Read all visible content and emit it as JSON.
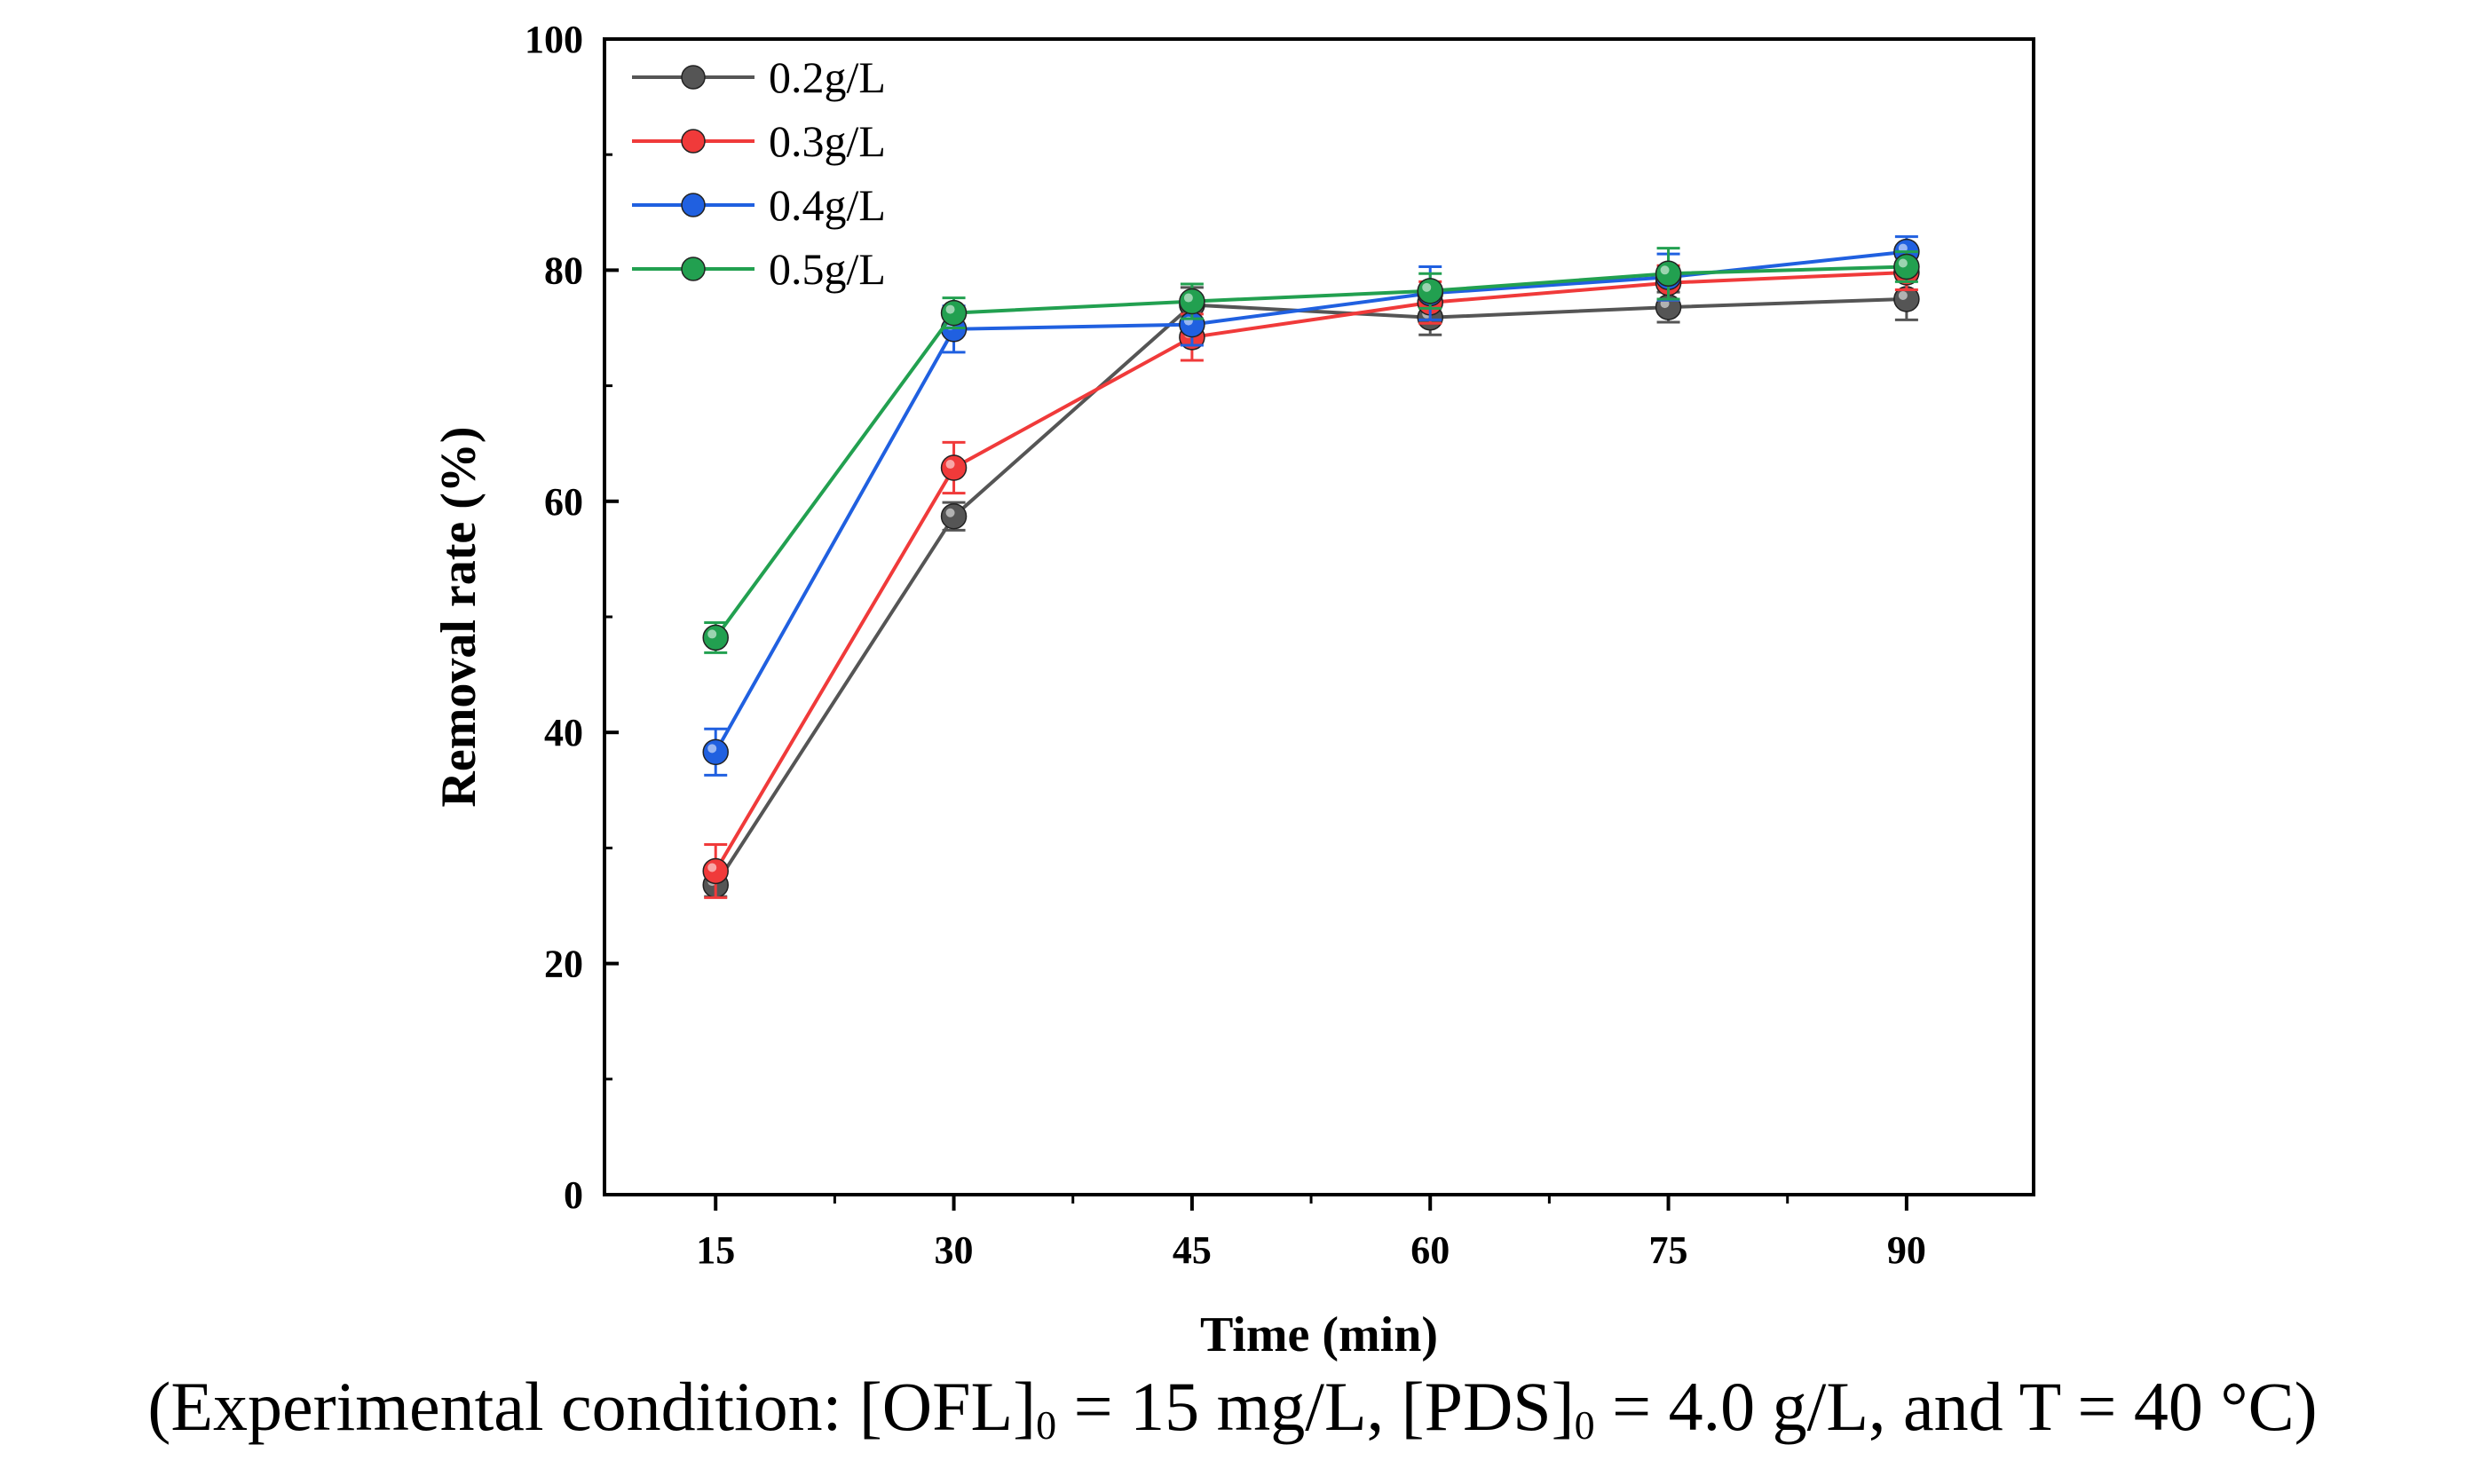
{
  "chart_data": {
    "type": "line",
    "title": "",
    "xlabel": "Time (min)",
    "ylabel": "Removal rate (%)",
    "x": [
      15,
      30,
      45,
      60,
      75,
      90
    ],
    "xlim": [
      8,
      98
    ],
    "ylim": [
      0,
      100
    ],
    "xticks": [
      15,
      30,
      45,
      60,
      75,
      90
    ],
    "yticks": [
      0,
      20,
      40,
      60,
      80,
      100
    ],
    "legend_position": "top-left",
    "series": [
      {
        "name": "0.2g/L",
        "color": "#555555",
        "values": [
          26.8,
          58.7,
          77.0,
          75.9,
          76.8,
          77.5
        ],
        "errors": [
          1.0,
          1.2,
          1.5,
          1.5,
          1.3,
          1.8
        ]
      },
      {
        "name": "0.3g/L",
        "color": "#f03a3a",
        "values": [
          28.0,
          62.9,
          74.2,
          77.2,
          78.9,
          79.8
        ],
        "errors": [
          2.3,
          2.2,
          2.0,
          1.8,
          1.5,
          1.5
        ]
      },
      {
        "name": "0.4g/L",
        "color": "#2060e0",
        "values": [
          38.3,
          74.9,
          75.3,
          78.0,
          79.4,
          81.6
        ],
        "errors": [
          2.0,
          2.0,
          1.8,
          2.3,
          2.0,
          1.3
        ]
      },
      {
        "name": "0.5g/L",
        "color": "#22a050",
        "values": [
          48.2,
          76.3,
          77.3,
          78.2,
          79.7,
          80.3
        ],
        "errors": [
          1.3,
          1.3,
          1.5,
          1.5,
          2.2,
          1.3
        ]
      }
    ]
  },
  "caption": {
    "prefix": "(Experimental condition: [OFL]",
    "sub1": "0",
    "mid1": " = 15 mg/L, [PDS]",
    "sub2": "0",
    "mid2": " = 4.0 g/L, and T = 40 °C)"
  }
}
